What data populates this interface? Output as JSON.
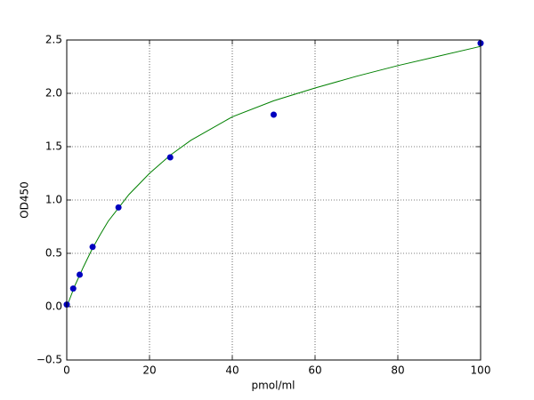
{
  "chart_data": {
    "type": "scatter",
    "x_label": "pmol/ml",
    "y_label": "OD450",
    "xlim": [
      0,
      100
    ],
    "ylim": [
      -0.5,
      2.5
    ],
    "xticks": [
      0,
      20,
      40,
      60,
      80,
      100
    ],
    "yticks": [
      {
        "value": -0.5,
        "label": "−0.5"
      },
      {
        "value": 0,
        "label": "0.0"
      },
      0.5,
      {
        "value": 1,
        "label": "1.0"
      },
      1.5,
      {
        "value": 2,
        "label": "2.0"
      },
      2.5
    ],
    "grid": true,
    "series": [
      {
        "type": "line",
        "color": "#008000",
        "x": [
          0,
          1,
          2,
          4,
          6,
          8,
          10,
          15,
          20,
          25,
          30,
          40,
          50,
          60,
          70,
          80,
          90,
          100
        ],
        "values": [
          0.0,
          0.1,
          0.2,
          0.37,
          0.53,
          0.67,
          0.8,
          1.05,
          1.25,
          1.42,
          1.56,
          1.78,
          1.93,
          2.05,
          2.16,
          2.26,
          2.35,
          2.44
        ]
      },
      {
        "type": "scatter",
        "color": "#0000bf",
        "x": [
          0,
          1.56,
          3.125,
          6.25,
          12.5,
          25,
          50,
          100
        ],
        "values": [
          0.02,
          0.17,
          0.3,
          0.56,
          0.93,
          1.4,
          1.8,
          2.47
        ]
      }
    ]
  }
}
